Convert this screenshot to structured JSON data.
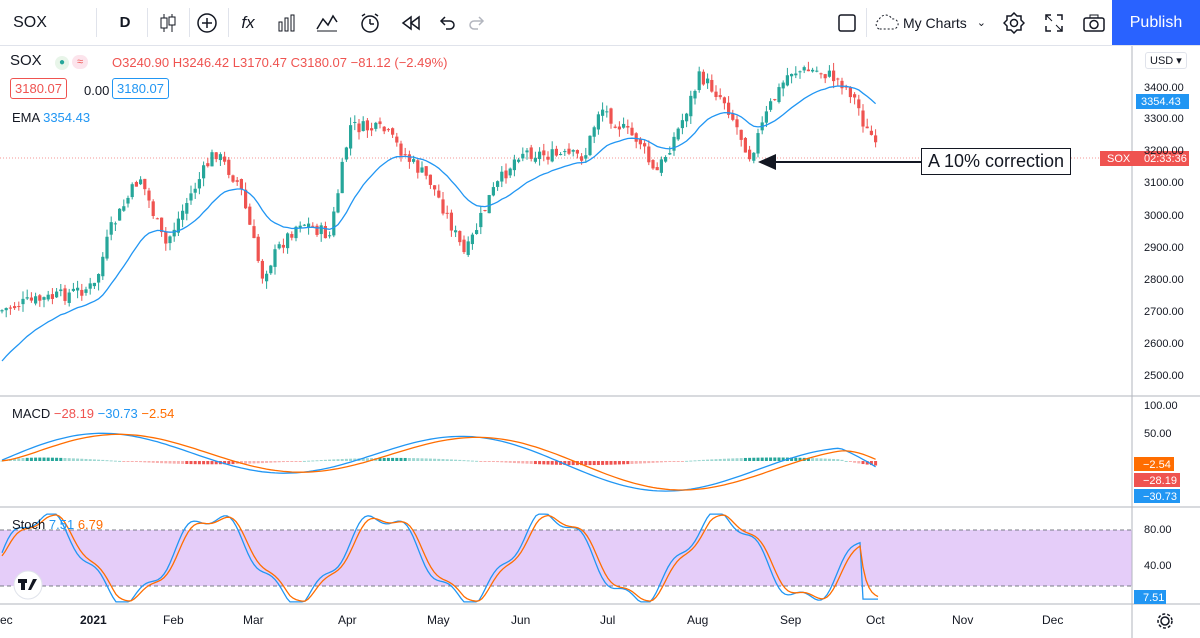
{
  "toolbar": {
    "symbol": "SOX",
    "interval": "D",
    "fx_label": "fx",
    "layout_name": "My Charts",
    "publish_label": "Publish"
  },
  "legend": {
    "symbol": "SOX",
    "open": "O3240.90",
    "high": "H3246.42",
    "low": "L3170.47",
    "close": "C3180.07",
    "change": "−81.12 (−2.49%)",
    "bid": "3180.07",
    "spread": "0.00",
    "ask": "3180.07",
    "ema_label": "EMA",
    "ema_value": "3354.43",
    "macd_label": "MACD",
    "macd_hist": "−28.19",
    "macd_line": "−30.73",
    "macd_signal": "−2.54",
    "stoch_label": "Stoch",
    "stoch_k": "7.51",
    "stoch_d": "6.79"
  },
  "price_axis": {
    "currency": "USD",
    "ticks": [
      "3400.00",
      "3300.00",
      "3200.00",
      "3100.00",
      "3000.00",
      "2900.00",
      "2800.00",
      "2700.00",
      "2600.00",
      "2500.00"
    ],
    "ema_tag": "3354.43",
    "sox_tag_symbol": "SOX",
    "sox_tag_time": "02:33:36"
  },
  "macd_axis": {
    "ticks": [
      "100.00",
      "50.00"
    ],
    "tag_signal": "−2.54",
    "tag_hist": "−28.19",
    "tag_macd": "−30.73"
  },
  "stoch_axis": {
    "ticks": [
      "80.00",
      "40.00"
    ],
    "tag_k": "7.51"
  },
  "time_axis": {
    "labels": [
      "ec",
      "2021",
      "Feb",
      "Mar",
      "Apr",
      "May",
      "Jun",
      "Jul",
      "Aug",
      "Sep",
      "Oct",
      "Nov",
      "Dec"
    ]
  },
  "annotation": {
    "text": "A 10% correction"
  },
  "colors": {
    "up": "#26a69a",
    "down": "#ef5350",
    "ema": "#2196f3",
    "macd": "#2196f3",
    "signal": "#ff6d00",
    "stoch_fill": "#e1c4f8",
    "accent": "#2962ff"
  },
  "icons": [
    "candles-icon",
    "plus-circle-icon",
    "fx-icon",
    "bars-icon",
    "indicators-icon",
    "alarm-icon",
    "replay-icon",
    "undo-icon",
    "redo-icon",
    "layout-icon",
    "cloud-icon",
    "settings-icon",
    "fullscreen-icon",
    "camera-icon",
    "gear-icon",
    "tv-logo-icon"
  ]
}
